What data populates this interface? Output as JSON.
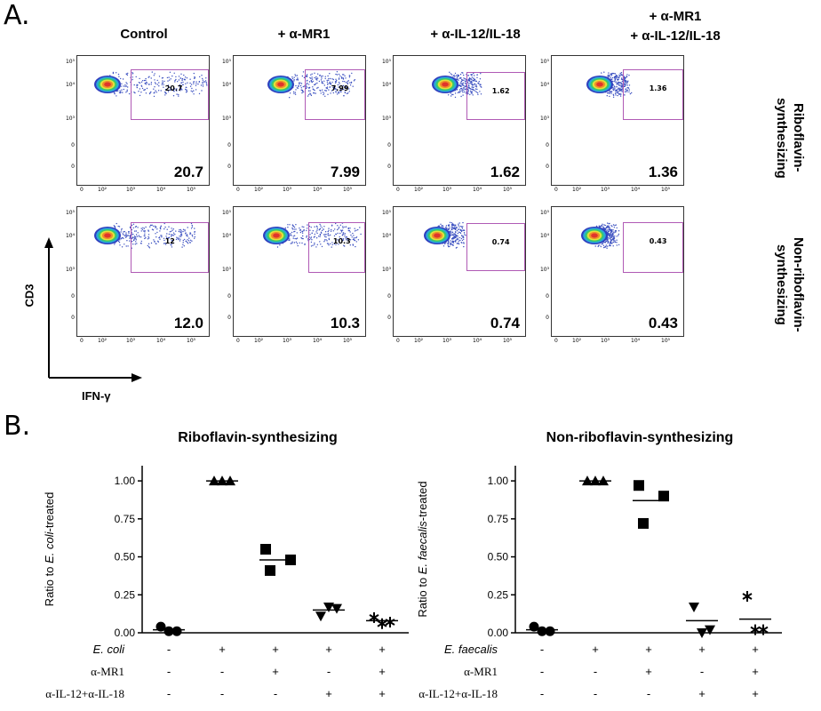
{
  "panel_a": {
    "letter": "A.",
    "columns": [
      "Control",
      "+ α-MR1",
      "+ α-IL-12/IL-18",
      "+ α-MR1\n+ α-IL-12/IL-18"
    ],
    "rows": [
      "Riboflavin-synthesizing",
      "Non-riboflavin-synthesizing"
    ],
    "y_axis_label": "CD3",
    "x_axis_label": "IFN-γ",
    "y_ticks": [
      "10⁵",
      "10⁴",
      "10³",
      "0"
    ],
    "x_ticks": [
      "0",
      "10²",
      "10³",
      "10⁴",
      "10⁵"
    ],
    "plots": [
      {
        "gate_value": "20.7",
        "big_value": "20.7"
      },
      {
        "gate_value": "7.99",
        "big_value": "7.99"
      },
      {
        "gate_value": "1.62",
        "big_value": "1.62"
      },
      {
        "gate_value": "1.36",
        "big_value": "1.36"
      },
      {
        "gate_value": "12",
        "big_value": "12.0"
      },
      {
        "gate_value": "10.3",
        "big_value": "10.3"
      },
      {
        "gate_value": "0.74",
        "big_value": "0.74"
      },
      {
        "gate_value": "0.43",
        "big_value": "0.43"
      }
    ]
  },
  "panel_b": {
    "letter": "B."
  },
  "chart_data": [
    {
      "type": "scatter",
      "title": "Riboflavin-synthesizing",
      "ylabel_parts": [
        "Ratio to ",
        "E. coli",
        "-treated"
      ],
      "y_ticks": [
        "0.00",
        "0.25",
        "0.50",
        "0.75",
        "1.00"
      ],
      "ylim": [
        0,
        1.1
      ],
      "conditions": [
        {
          "label": "E. coli",
          "italic": true,
          "signs": [
            "-",
            "+",
            "+",
            "+",
            "+"
          ]
        },
        {
          "label": "α-MR1",
          "italic": false,
          "signs": [
            "-",
            "-",
            "+",
            "-",
            "+"
          ]
        },
        {
          "label": "α-IL-12+α-IL-18",
          "italic": false,
          "signs": [
            "-",
            "-",
            "-",
            "+",
            "+"
          ]
        }
      ],
      "groups": [
        {
          "marker": "circle",
          "values": [
            0.04,
            0.01,
            0.01
          ],
          "mean": 0.02
        },
        {
          "marker": "triangle-up",
          "values": [
            1.0,
            1.0,
            1.0
          ],
          "mean": 1.0
        },
        {
          "marker": "square",
          "values": [
            0.55,
            0.41,
            0.48
          ],
          "mean": 0.48
        },
        {
          "marker": "triangle-down",
          "values": [
            0.11,
            0.17,
            0.16
          ],
          "mean": 0.15
        },
        {
          "marker": "asterisk",
          "values": [
            0.1,
            0.06,
            0.07
          ],
          "mean": 0.08
        }
      ]
    },
    {
      "type": "scatter",
      "title": "Non-riboflavin-synthesizing",
      "ylabel_parts": [
        "Ratio to ",
        "E. faecalis",
        "-treated"
      ],
      "y_ticks": [
        "0.00",
        "0.25",
        "0.50",
        "0.75",
        "1.00"
      ],
      "ylim": [
        0,
        1.1
      ],
      "conditions": [
        {
          "label": "E. faecalis",
          "italic": true,
          "signs": [
            "-",
            "+",
            "+",
            "+",
            "+"
          ]
        },
        {
          "label": "α-MR1",
          "italic": false,
          "signs": [
            "-",
            "-",
            "+",
            "-",
            "+"
          ]
        },
        {
          "label": "α-IL-12+α-IL-18",
          "italic": false,
          "signs": [
            "-",
            "-",
            "-",
            "+",
            "+"
          ]
        }
      ],
      "groups": [
        {
          "marker": "circle",
          "values": [
            0.04,
            0.01,
            0.01
          ],
          "mean": 0.02
        },
        {
          "marker": "triangle-up",
          "values": [
            1.0,
            1.0,
            1.0
          ],
          "mean": 1.0
        },
        {
          "marker": "square",
          "values": [
            0.97,
            0.72,
            0.9
          ],
          "mean": 0.87
        },
        {
          "marker": "triangle-down",
          "values": [
            0.17,
            0.0,
            0.02
          ],
          "mean": 0.08
        },
        {
          "marker": "asterisk",
          "values": [
            0.24,
            0.02,
            0.02
          ],
          "mean": 0.09
        }
      ]
    }
  ]
}
